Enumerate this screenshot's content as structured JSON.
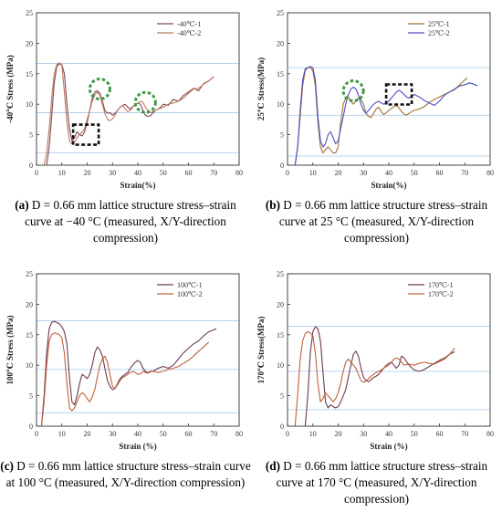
{
  "chart_data": [
    {
      "type": "line",
      "panel_label": "(a)",
      "caption": "D = 0.66 mm lattice structure stress–strain curve at −40 °C (measured, X/Y-direction compression)",
      "xlabel": "Strain(%)",
      "ylabel": "-40℃ Stress (MPa)",
      "xlim": [
        0,
        80
      ],
      "ylim": [
        0,
        25
      ],
      "xticks": [
        "0",
        "10",
        "20",
        "30",
        "40",
        "50",
        "60",
        "70",
        "80"
      ],
      "yticks": [
        "0",
        "5",
        "10",
        "15",
        "20",
        "25"
      ],
      "legend_position": "top-right",
      "reference_lines_y": [
        2,
        8.6,
        16.7
      ],
      "annotations": [
        {
          "type": "green-dashed-circle",
          "x": 25,
          "y": 12.5
        },
        {
          "type": "green-dashed-circle",
          "x": 43,
          "y": 10.3
        },
        {
          "type": "black-dashed-square",
          "x": 19.5,
          "y": 5
        }
      ],
      "series": [
        {
          "name": "-40℃-1",
          "color": "#7a4a55",
          "x": [
            4,
            5,
            6,
            7,
            8,
            9,
            10,
            11,
            12,
            13,
            14,
            15,
            16,
            17,
            18,
            19,
            20,
            21,
            22,
            23,
            24,
            25,
            26,
            27,
            28,
            29,
            30,
            31,
            32,
            33,
            34,
            35,
            36,
            37,
            38,
            39,
            40,
            41,
            42,
            43,
            44,
            45,
            46,
            47,
            48,
            49,
            50,
            52,
            54,
            56,
            58,
            60,
            62,
            64,
            66,
            68,
            69,
            70
          ],
          "y": [
            0,
            3,
            8,
            13.5,
            16.2,
            16.6,
            16.5,
            15,
            10,
            6,
            4,
            4.5,
            5.5,
            5,
            4.8,
            5.5,
            7,
            9,
            11,
            12,
            12.2,
            11.8,
            10.5,
            9,
            8.5,
            8.6,
            8.2,
            8.5,
            9,
            9.5,
            9.8,
            10,
            9.5,
            9.2,
            9.6,
            10,
            10.2,
            10,
            9,
            8.2,
            8,
            8.1,
            8.6,
            9,
            9.2,
            9.5,
            10,
            9.8,
            10.8,
            10.5,
            11.4,
            12,
            12.6,
            12.2,
            13.4,
            13.8,
            14.2,
            14.5
          ]
        },
        {
          "name": "-40℃-2",
          "color": "#c07860",
          "x": [
            3,
            4,
            5,
            6,
            7,
            8,
            9,
            10,
            11,
            12,
            13,
            14,
            15,
            16,
            17,
            18,
            19,
            20,
            21,
            22,
            23,
            24,
            25,
            26,
            27,
            28,
            29,
            30,
            31,
            32,
            33,
            34,
            35,
            36,
            37,
            38,
            39,
            40,
            41,
            42,
            43,
            44,
            45,
            46,
            48,
            50,
            52,
            54,
            56,
            58,
            60,
            62,
            64,
            66,
            68,
            70
          ],
          "y": [
            0,
            2,
            6,
            11,
            15,
            16.5,
            16.8,
            16.4,
            12,
            7,
            4,
            3.5,
            3.8,
            4.5,
            5,
            5.5,
            6,
            7.5,
            9,
            10.5,
            11.5,
            12,
            11.5,
            10,
            8.5,
            7.5,
            7.3,
            7.6,
            8.2,
            9,
            9.5,
            9.8,
            9.2,
            8.8,
            9,
            9.5,
            10,
            10.2,
            10.5,
            10.3,
            9.5,
            9,
            8.6,
            8.8,
            9.2,
            9.5,
            10,
            10.2,
            10.5,
            11,
            11.8,
            12.5,
            12.6,
            13.3,
            13.8,
            14.5
          ]
        }
      ]
    },
    {
      "type": "line",
      "panel_label": "(b)",
      "caption": "D = 0.66 mm lattice structure stress–strain curve at 25 °C (measured, X/Y-direction compression)",
      "xlabel": "Strain(%)",
      "ylabel": "25℃ Stress(MPa)",
      "xlim": [
        0,
        80
      ],
      "ylim": [
        0,
        25
      ],
      "xticks": [
        "0",
        "10",
        "20",
        "30",
        "40",
        "50",
        "60",
        "70",
        "80"
      ],
      "yticks": [
        "0",
        "5",
        "10",
        "15",
        "20",
        "25"
      ],
      "legend_position": "top-right",
      "reference_lines_y": [
        1.5,
        8.2,
        16
      ],
      "annotations": [
        {
          "type": "green-dashed-circle",
          "x": 26,
          "y": 12.2
        },
        {
          "type": "black-dashed-square",
          "x": 44,
          "y": 11.6
        }
      ],
      "series": [
        {
          "name": "25℃-1",
          "color": "#a0703a",
          "x": [
            3,
            4,
            5,
            6,
            7,
            8,
            9,
            10,
            11,
            12,
            13,
            14,
            15,
            16,
            17,
            18,
            19,
            20,
            21,
            22,
            23,
            24,
            25,
            26,
            27,
            28,
            29,
            30,
            31,
            32,
            33,
            34,
            35,
            36,
            37,
            38,
            39,
            40,
            41,
            42,
            43,
            44,
            45,
            46,
            47,
            48,
            49,
            50,
            52,
            54,
            56,
            58,
            60,
            62,
            64,
            66,
            68,
            70,
            71
          ],
          "y": [
            0,
            3,
            8,
            13,
            15.5,
            16,
            16,
            15.5,
            13,
            7,
            3,
            2,
            2.5,
            3,
            2.5,
            2,
            2,
            3,
            7,
            10,
            11,
            11.2,
            10.5,
            10,
            10.5,
            11,
            10.8,
            10,
            8.5,
            8,
            7.8,
            8.5,
            9.2,
            9.5,
            8.8,
            8.3,
            8.6,
            9,
            9.3,
            9.6,
            9.8,
            9.4,
            8.8,
            8.4,
            8.2,
            8.5,
            8.8,
            9,
            9.2,
            9.6,
            10.3,
            10.8,
            11.2,
            11.6,
            12,
            12.4,
            13.2,
            14,
            14.3
          ]
        },
        {
          "name": "25℃-2",
          "color": "#4b4fc0",
          "x": [
            3,
            4,
            5,
            6,
            7,
            8,
            9,
            10,
            11,
            12,
            13,
            14,
            15,
            16,
            17,
            18,
            19,
            20,
            21,
            22,
            23,
            24,
            25,
            26,
            27,
            28,
            29,
            30,
            31,
            32,
            33,
            34,
            35,
            36,
            37,
            38,
            39,
            40,
            41,
            42,
            43,
            44,
            45,
            46,
            47,
            48,
            49,
            50,
            52,
            54,
            56,
            58,
            60,
            62,
            64,
            66,
            68,
            70,
            72,
            74,
            75
          ],
          "y": [
            0,
            3,
            9,
            14,
            15.8,
            16,
            16.2,
            16,
            14,
            8,
            4,
            3,
            3.5,
            5,
            5.5,
            4.5,
            3.5,
            4,
            6,
            8,
            10,
            11.5,
            12.5,
            12.8,
            12.5,
            11.5,
            10,
            9,
            8.5,
            9,
            9.5,
            10,
            10.3,
            10.5,
            10.2,
            10,
            10.2,
            10.5,
            11,
            11.5,
            12,
            12.3,
            12,
            11.6,
            11.2,
            11,
            11.3,
            11.6,
            11.2,
            10.6,
            10.2,
            9.8,
            10.5,
            11.5,
            12,
            12.5,
            13,
            13.2,
            13.5,
            13.2,
            13
          ]
        }
      ]
    },
    {
      "type": "line",
      "panel_label": "(c)",
      "caption": "D = 0.66 mm lattice structure stress–strain curve at 100 °C (measured, X/Y-direction compression)",
      "xlabel": "Strain (%)",
      "ylabel": "100℃ Stress (MPa)",
      "xlim": [
        0,
        80
      ],
      "ylim": [
        0,
        25
      ],
      "xticks": [
        "0",
        "10",
        "20",
        "30",
        "40",
        "50",
        "60",
        "70",
        "80"
      ],
      "yticks": [
        "0",
        "5",
        "10",
        "15",
        "20",
        "25"
      ],
      "legend_position": "top-right",
      "reference_lines_y": [
        2.2,
        9.3,
        17.3
      ],
      "annotations": [],
      "series": [
        {
          "name": "100℃-1",
          "color": "#6b3a52",
          "x": [
            2,
            3,
            4,
            5,
            6,
            7,
            8,
            9,
            10,
            11,
            12,
            13,
            14,
            15,
            16,
            17,
            18,
            19,
            20,
            21,
            22,
            23,
            24,
            25,
            26,
            27,
            28,
            29,
            30,
            31,
            32,
            33,
            34,
            35,
            36,
            37,
            38,
            39,
            40,
            41,
            42,
            43,
            44,
            45,
            46,
            48,
            50,
            52,
            54,
            56,
            58,
            60,
            62,
            64,
            66,
            68,
            70,
            71
          ],
          "y": [
            0,
            5,
            12,
            16,
            17,
            17.2,
            17,
            16.8,
            16.3,
            15.5,
            13.5,
            8,
            4,
            3.5,
            5,
            7,
            8.5,
            8.2,
            7.8,
            8.5,
            10,
            12,
            13,
            12.5,
            11.5,
            9.5,
            7.5,
            6.5,
            6,
            6.2,
            7,
            7.8,
            8.2,
            8.5,
            8.8,
            9.5,
            10,
            10.5,
            10.8,
            10.5,
            9.5,
            9,
            8.8,
            9,
            9,
            9.5,
            9.8,
            9.5,
            10,
            11,
            12,
            12.8,
            13.5,
            14,
            14.8,
            15.5,
            15.8,
            16
          ]
        },
        {
          "name": "100℃-2",
          "color": "#c0603a",
          "x": [
            2,
            3,
            4,
            5,
            6,
            7,
            8,
            9,
            10,
            11,
            12,
            13,
            14,
            15,
            16,
            17,
            18,
            19,
            20,
            21,
            22,
            23,
            24,
            25,
            26,
            27,
            28,
            29,
            30,
            31,
            32,
            33,
            34,
            35,
            36,
            37,
            38,
            39,
            40,
            41,
            42,
            43,
            44,
            45,
            46,
            48,
            50,
            52,
            54,
            56,
            58,
            60,
            62,
            64,
            66,
            68
          ],
          "y": [
            0,
            4,
            10,
            14,
            15,
            15.3,
            15.2,
            15,
            14.5,
            12,
            7,
            3,
            2.5,
            3,
            4,
            5,
            5.5,
            5.2,
            4.5,
            4,
            4.8,
            6,
            8,
            10,
            11,
            11.5,
            10.5,
            8.5,
            6.5,
            6.2,
            6.8,
            7.5,
            8,
            8.2,
            8.5,
            8.8,
            9,
            8.8,
            8.5,
            8.6,
            9,
            8.8,
            8.7,
            8.9,
            9,
            8.8,
            9,
            9.3,
            9.5,
            9.8,
            10.3,
            10.8,
            11.5,
            12.3,
            13,
            13.8
          ]
        }
      ]
    },
    {
      "type": "line",
      "panel_label": "(d)",
      "caption": "D = 0.66 mm lattice structure stress–strain curve at 170 °C (measured, X/Y-direction compression)",
      "xlabel": "Strain (%)",
      "ylabel": "170℃ Stress(MPa)",
      "xlim": [
        0,
        80
      ],
      "ylim": [
        0,
        25
      ],
      "xticks": [
        "0",
        "10",
        "20",
        "30",
        "40",
        "50",
        "60",
        "70",
        "80"
      ],
      "yticks": [
        "0",
        "5",
        "10",
        "15",
        "20",
        "25"
      ],
      "legend_position": "top-right",
      "reference_lines_y": [
        2.7,
        9,
        16.4
      ],
      "annotations": [],
      "series": [
        {
          "name": "170℃-1",
          "color": "#6b3a52",
          "x": [
            7,
            8,
            9,
            10,
            11,
            12,
            13,
            14,
            15,
            16,
            17,
            18,
            19,
            20,
            21,
            22,
            23,
            24,
            25,
            26,
            27,
            28,
            29,
            30,
            31,
            32,
            33,
            34,
            35,
            36,
            37,
            38,
            39,
            40,
            41,
            42,
            43,
            44,
            45,
            46,
            48,
            50,
            52,
            54,
            56,
            58,
            60,
            62,
            64,
            66
          ],
          "y": [
            0,
            5,
            12,
            15.5,
            16.3,
            16,
            14,
            9,
            4,
            3,
            3.5,
            3.2,
            3,
            3.2,
            4,
            5,
            6,
            8,
            10,
            11.8,
            12.3,
            11.5,
            9.5,
            8,
            7.5,
            7.3,
            7.6,
            8,
            8.2,
            8.5,
            9,
            9.5,
            10,
            10.3,
            10.5,
            10,
            9.5,
            10,
            11.5,
            11.2,
            10,
            9.2,
            9,
            9.3,
            9.8,
            10.3,
            10.8,
            11.2,
            11.8,
            12.2
          ]
        },
        {
          "name": "170℃-2",
          "color": "#c0603a",
          "x": [
            3,
            4,
            5,
            6,
            7,
            8,
            9,
            10,
            11,
            12,
            13,
            14,
            15,
            16,
            17,
            18,
            19,
            20,
            21,
            22,
            23,
            24,
            25,
            26,
            27,
            28,
            29,
            30,
            31,
            32,
            33,
            34,
            35,
            36,
            37,
            38,
            39,
            40,
            41,
            42,
            43,
            44,
            45,
            46,
            48,
            50,
            52,
            54,
            56,
            58,
            60,
            62,
            64,
            66
          ],
          "y": [
            0,
            5,
            11,
            14,
            15.2,
            15.5,
            15.3,
            14.8,
            12,
            7,
            4,
            4.5,
            5.5,
            5,
            4.5,
            4,
            4.5,
            5.5,
            7,
            9,
            10.5,
            11,
            10.5,
            10,
            9.5,
            8.5,
            7.5,
            7.2,
            7.4,
            7.8,
            8.2,
            8.5,
            8.8,
            9,
            9.2,
            9.5,
            9.8,
            10,
            10.5,
            11,
            11.2,
            11,
            10.5,
            10,
            10.2,
            10,
            10.3,
            10.5,
            10.3,
            10.2,
            10.6,
            11,
            11.8,
            12.8
          ]
        }
      ]
    }
  ]
}
